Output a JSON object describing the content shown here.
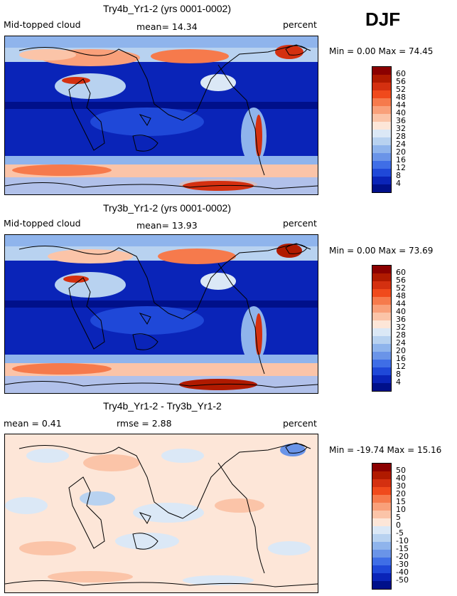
{
  "season": "DJF",
  "panels": [
    {
      "title": "Try4b_Yr1-2 (yrs 0001-0002)",
      "left_label": "Mid-topped cloud",
      "center_label": "mean=  14.34",
      "right_label": "percent",
      "stats": "Min =    0.00  Max =   74.45",
      "min": 0.0,
      "max": 74.45,
      "mean": 14.34,
      "colorbar_labels": [
        "60",
        "56",
        "52",
        "48",
        "44",
        "40",
        "36",
        "32",
        "28",
        "24",
        "20",
        "16",
        "12",
        "8",
        "4"
      ],
      "colorbar_colors": [
        "#8b0000",
        "#b01a00",
        "#d43010",
        "#f04a1c",
        "#f67a4c",
        "#f9a07a",
        "#fbc4a8",
        "#fde6d8",
        "#dbe8f6",
        "#b8d2f0",
        "#8fb4ec",
        "#6a94e8",
        "#3f6ee6",
        "#1f48d8",
        "#0a24b8",
        "#00108a"
      ]
    },
    {
      "title": "Try3b_Yr1-2 (yrs 0001-0002)",
      "left_label": "Mid-topped cloud",
      "center_label": "mean=  13.93",
      "right_label": "percent",
      "stats": "Min =    0.00  Max =   73.69",
      "min": 0.0,
      "max": 73.69,
      "mean": 13.93,
      "colorbar_labels": [
        "60",
        "56",
        "52",
        "48",
        "44",
        "40",
        "36",
        "32",
        "28",
        "24",
        "20",
        "16",
        "12",
        "8",
        "4"
      ],
      "colorbar_colors": [
        "#8b0000",
        "#b01a00",
        "#d43010",
        "#f04a1c",
        "#f67a4c",
        "#f9a07a",
        "#fbc4a8",
        "#fde6d8",
        "#dbe8f6",
        "#b8d2f0",
        "#8fb4ec",
        "#6a94e8",
        "#3f6ee6",
        "#1f48d8",
        "#0a24b8",
        "#00108a"
      ]
    },
    {
      "title": "Try4b_Yr1-2 - Try3b_Yr1-2",
      "left_label": "mean =    0.41",
      "center_label": "rmse =    2.88",
      "right_label": "percent",
      "stats": "Min = -19.74  Max =   15.16",
      "min": -19.74,
      "max": 15.16,
      "mean": 0.41,
      "rmse": 2.88,
      "colorbar_labels": [
        "50",
        "40",
        "30",
        "20",
        "15",
        "10",
        "5",
        "0",
        "-5",
        "-10",
        "-15",
        "-20",
        "-30",
        "-40",
        "-50"
      ],
      "colorbar_colors": [
        "#8b0000",
        "#b01a00",
        "#d43010",
        "#f04a1c",
        "#f67a4c",
        "#f9a07a",
        "#fbc4a8",
        "#fde6d8",
        "#dbe8f6",
        "#b8d2f0",
        "#8fb4ec",
        "#6a94e8",
        "#3f6ee6",
        "#1f48d8",
        "#0a24b8",
        "#00108a"
      ]
    }
  ]
}
